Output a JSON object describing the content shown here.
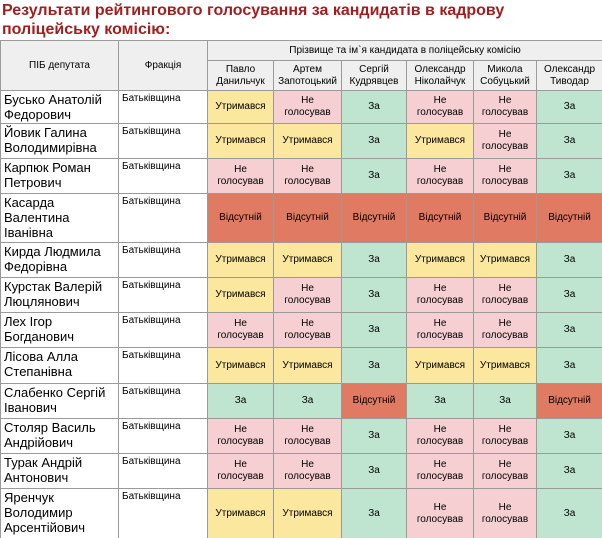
{
  "title": "Результати рейтингового голосування за кандидатів в кадрову поліцейську комісію:",
  "table": {
    "header": {
      "name": "ПІБ депутата",
      "faction": "Фракція",
      "candidates_caption": "Прізвище та ім`я кандидата в поліцейську комісію",
      "candidates": [
        "Павло Данильчук",
        "Артем Запотоцький",
        "Сергій Кудрявцев",
        "Олександр Ніколайчук",
        "Микола Собуцький",
        "Олександр Тиводар"
      ]
    },
    "rows": [
      {
        "name": "Бусько Анатолій Федорович",
        "faction": "Батьківщина",
        "votes": [
          "Утримався",
          "Не голосував",
          "За",
          "Не голосував",
          "Не голосував",
          "За"
        ]
      },
      {
        "name": "Йовик Галина Володимирівна",
        "faction": "Батьківщина",
        "votes": [
          "Утримався",
          "Утримався",
          "За",
          "Утримався",
          "Не голосував",
          "За"
        ]
      },
      {
        "name": "Карпюк Роман Петрович",
        "faction": "Батьківщина",
        "votes": [
          "Не голосував",
          "Не голосував",
          "За",
          "Не голосував",
          "Не голосував",
          "За"
        ]
      },
      {
        "name": "Касарда Валентина Іванівна",
        "faction": "Батьківщина",
        "votes": [
          "Відсутній",
          "Відсутній",
          "Відсутній",
          "Відсутній",
          "Відсутній",
          "Відсутній"
        ]
      },
      {
        "name": "Кирда Людмила Федорівна",
        "faction": "Батьківщина",
        "votes": [
          "Утримався",
          "Утримався",
          "За",
          "Утримався",
          "Утримався",
          "За"
        ]
      },
      {
        "name": "Курстак Валерій Люцлянович",
        "faction": "Батьківщина",
        "votes": [
          "Утримався",
          "Не голосував",
          "За",
          "Не голосував",
          "Не голосував",
          "За"
        ]
      },
      {
        "name": "Лех Ігор Богданович",
        "faction": "Батьківщина",
        "votes": [
          "Не голосував",
          "Не голосував",
          "За",
          "Не голосував",
          "Не голосував",
          "За"
        ]
      },
      {
        "name": "Лісова Алла Степанівна",
        "faction": "Батьківщина",
        "votes": [
          "Утримався",
          "Утримався",
          "За",
          "Утримався",
          "Утримався",
          "За"
        ]
      },
      {
        "name": "Слабенко Сергій Іванович",
        "faction": "Батьківщина",
        "votes": [
          "За",
          "За",
          "Відсутній",
          "За",
          "За",
          "Відсутній"
        ]
      },
      {
        "name": "Столяр Василь Андрійович",
        "faction": "Батьківщина",
        "votes": [
          "Не голосував",
          "Не голосував",
          "За",
          "Не голосував",
          "Не голосував",
          "За"
        ]
      },
      {
        "name": "Турак Андрій Антонович",
        "faction": "Батьківщина",
        "votes": [
          "Не голосував",
          "Не голосував",
          "За",
          "Не голосував",
          "Не голосував",
          "За"
        ]
      },
      {
        "name": "Яренчук Володимир Арсентійович",
        "faction": "Батьківщина",
        "votes": [
          "Утримався",
          "Утримався",
          "За",
          "Не голосував",
          "Не голосував",
          "За"
        ]
      }
    ],
    "vote_colors": {
      "За": "#bfe5d0",
      "Утримався": "#fbe79e",
      "Не голосував": "#f6cfd2",
      "Відсутній": "#e07a63"
    }
  }
}
